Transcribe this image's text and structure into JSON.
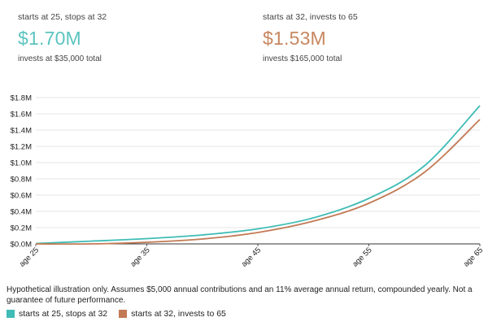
{
  "summary": [
    {
      "caption": "starts at 25, stops at 32",
      "value": "$1.70M",
      "note": "invests at $35,000 total",
      "color": "#5bc4c0"
    },
    {
      "caption": "starts at 32, invests to 65",
      "value": "$1.53M",
      "note": "invests $165,000 total",
      "color": "#c7875f"
    }
  ],
  "footnote": "Hypothetical illustration only. Assumes $5,000 annual contributions and an 11% average annual return, compounded yearly. Not a guarantee of future performance.",
  "colors": {
    "early": "#3fbcb5",
    "late": "#c27a55",
    "grid": "#dcdcdc",
    "axis": "#333333"
  },
  "chart_data": {
    "type": "line",
    "xlabel": "",
    "ylabel": "",
    "x_range": [
      25,
      65
    ],
    "ylim": [
      0,
      1800000
    ],
    "y_ticks": [
      0,
      200000,
      400000,
      600000,
      800000,
      1000000,
      1200000,
      1400000,
      1600000,
      1800000
    ],
    "y_tick_labels": [
      "$0.0M",
      "$0.2M",
      "$0.4M",
      "$0.6M",
      "$0.8M",
      "$1.0M",
      "$1.2M",
      "$1.4M",
      "$1.6M",
      "$1.8M"
    ],
    "x_ticks": [
      25,
      35,
      45,
      55,
      65
    ],
    "x_tick_labels": [
      "age 25",
      "age 35",
      "age 45",
      "age 55",
      "age 65"
    ],
    "grid": "horizontal",
    "legend": "bottom-left",
    "series": [
      {
        "name": "starts at 25, stops at 32",
        "color": "#3fbcb5",
        "x": [
          25,
          30,
          35,
          40,
          45,
          50,
          55,
          60,
          65
        ],
        "values": [
          5000,
          34000,
          65000,
          110000,
          185000,
          320000,
          560000,
          960000,
          1700000
        ]
      },
      {
        "name": "starts at 32, invests to 65",
        "color": "#c27a55",
        "x": [
          25,
          30,
          35,
          40,
          45,
          50,
          55,
          60,
          65
        ],
        "values": [
          0,
          0,
          20000,
          60000,
          140000,
          280000,
          500000,
          880000,
          1530000
        ]
      }
    ]
  }
}
